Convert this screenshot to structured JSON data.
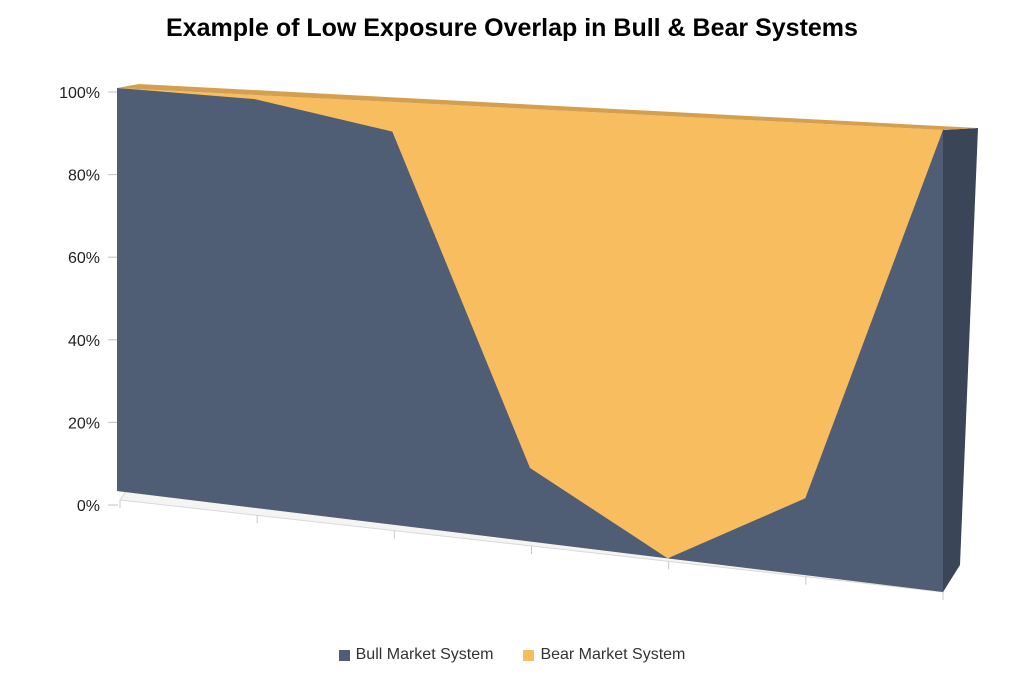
{
  "chart_data": {
    "type": "area",
    "stacked": "100%",
    "title": "Example of Low Exposure Overlap in Bull & Bear Systems",
    "xlabel": "",
    "ylabel": "",
    "categories": [
      "",
      "",
      "",
      "",
      "",
      "",
      ""
    ],
    "ylim": [
      0,
      100
    ],
    "yticks": [
      "0%",
      "20%",
      "40%",
      "60%",
      "80%",
      "100%"
    ],
    "series": [
      {
        "name": "Bull Market System",
        "color": "#4f5d75",
        "values": [
          100,
          99,
          93,
          17,
          0,
          17,
          100
        ]
      },
      {
        "name": "Bear Market System",
        "color": "#f7bd5f",
        "values": [
          0,
          1,
          7,
          83,
          100,
          83,
          0
        ]
      }
    ],
    "legend_position": "bottom",
    "grid": false,
    "style": "3d"
  }
}
